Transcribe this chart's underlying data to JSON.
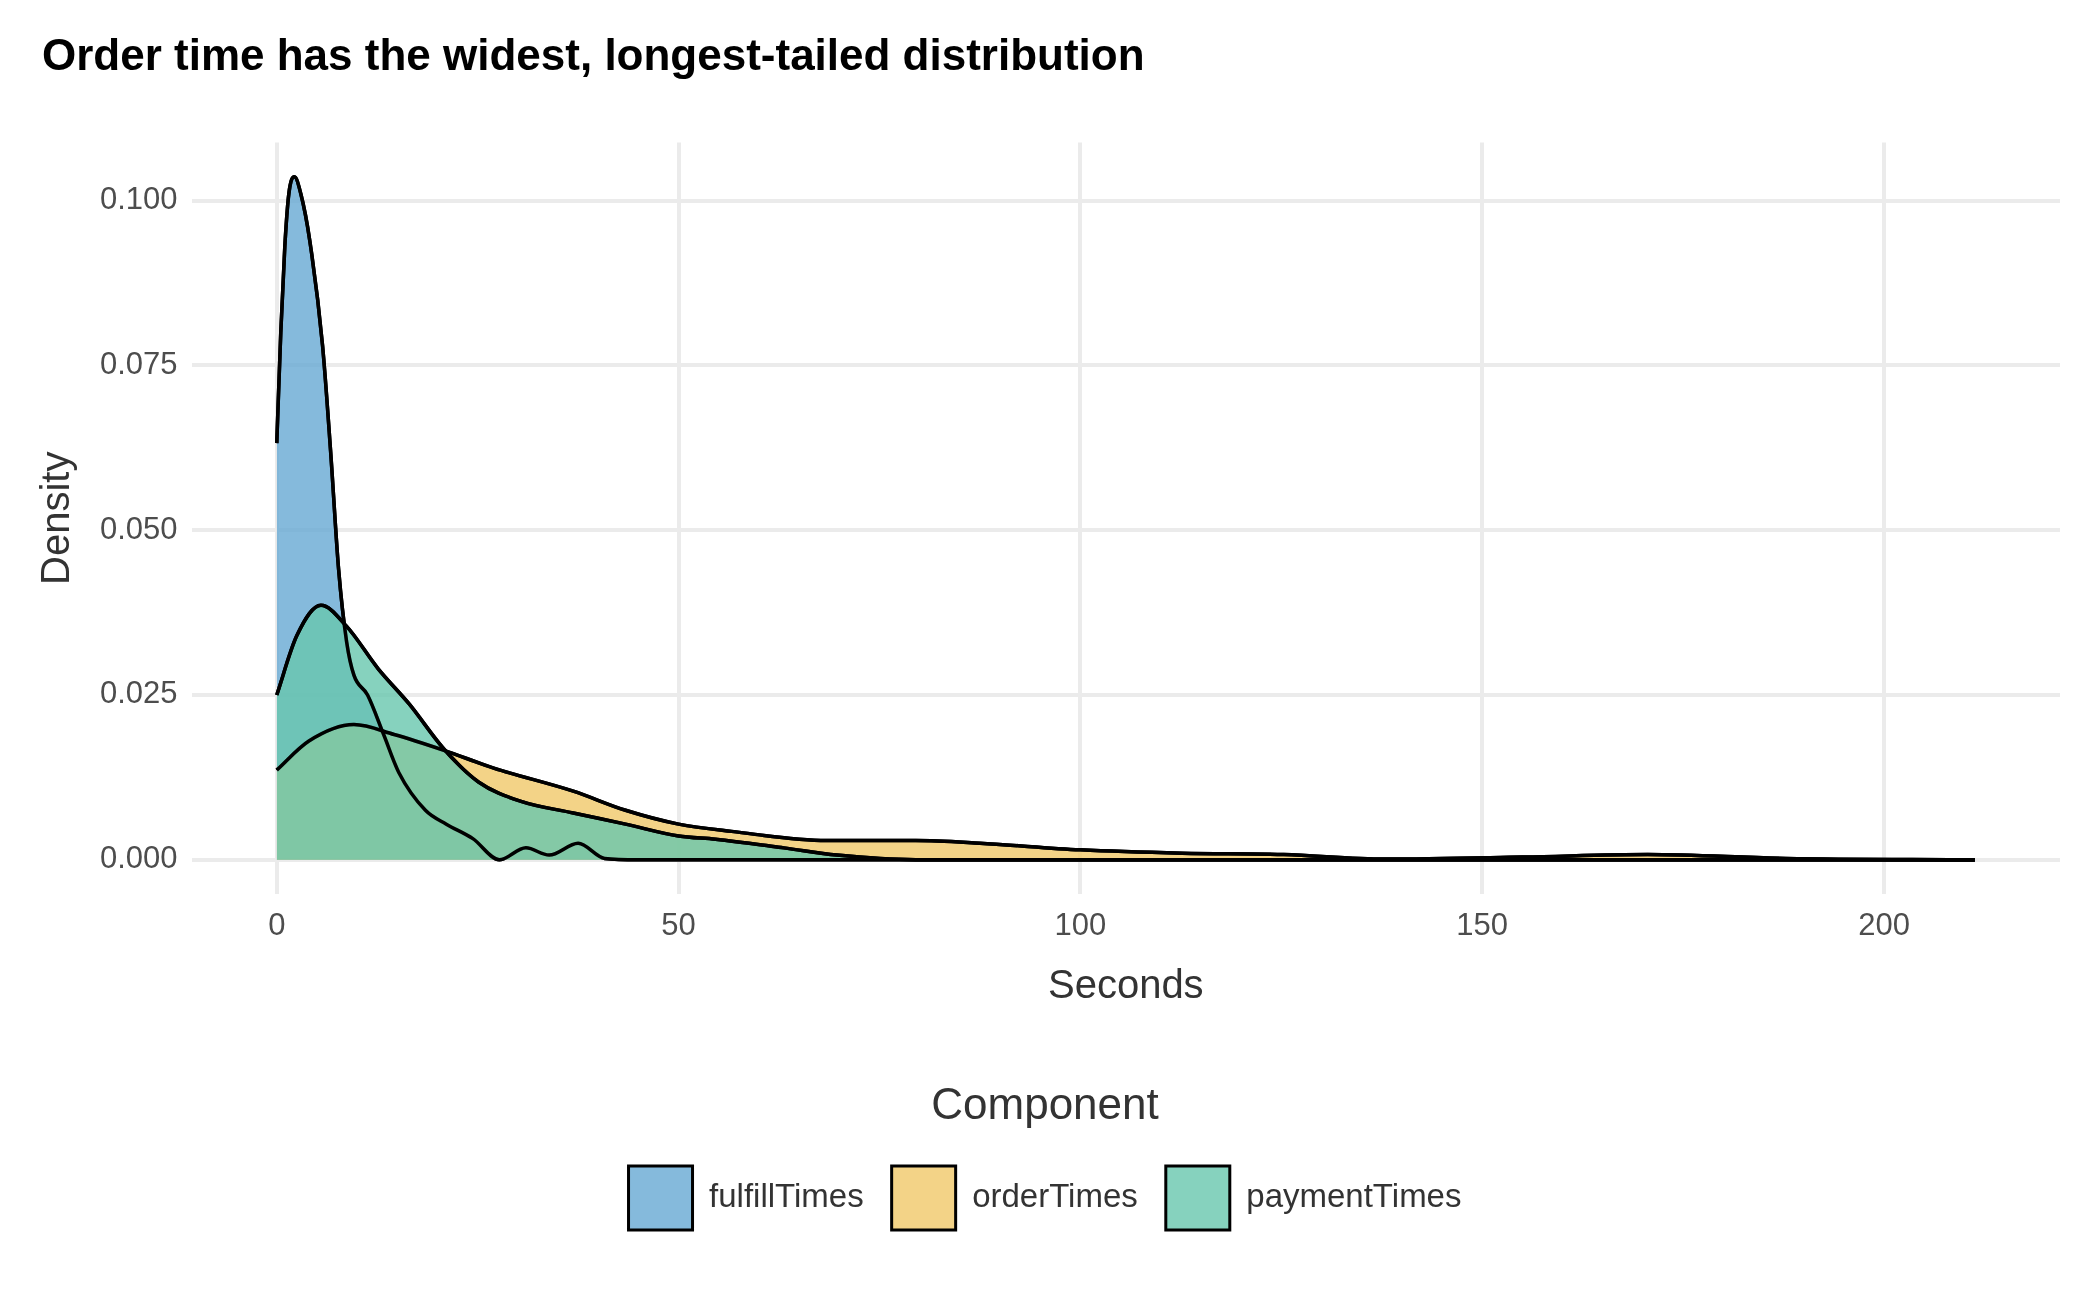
{
  "chart_data": {
    "type": "area",
    "title": "Order time has the widest, longest-tailed distribution",
    "xlabel": "Seconds",
    "ylabel": "Density",
    "legend_title": "Component",
    "legend": "bottom",
    "grid": true,
    "marker": "none",
    "xlim": [
      -10.6,
      221.9
    ],
    "xticks": [
      0,
      50,
      100,
      150,
      200
    ],
    "ylim": [
      -0.0052,
      0.1088
    ],
    "yticks": [
      {
        "value": 0,
        "label": "0.000"
      },
      {
        "value": 0.025,
        "label": "0.025"
      },
      {
        "value": 0.05,
        "label": "0.050"
      },
      {
        "value": 0.075,
        "label": "0.075"
      },
      {
        "value": 0.1,
        "label": "0.100"
      }
    ],
    "series": [
      {
        "name": "fulfillTimes",
        "color": "#66a9d3",
        "x": [
          0,
          0.5,
          1,
          1.5,
          2.2,
          3,
          4.1,
          5.7,
          6.7,
          7.7,
          8.7,
          9.6,
          11.3,
          13.3,
          15.2,
          18.5,
          21.1,
          24.4,
          27.7,
          31,
          33.9,
          37.5,
          40.8,
          45,
          60,
          100,
          150,
          211.3
        ],
        "values": [
          0.0632,
          0.08,
          0.093,
          0.101,
          0.1036,
          0.101,
          0.094,
          0.078,
          0.062,
          0.044,
          0.033,
          0.028,
          0.025,
          0.019,
          0.0132,
          0.0075,
          0.0054,
          0.0032,
          0,
          0.0018,
          0.0007,
          0.0025,
          0.0002,
          0,
          0,
          0,
          0,
          0
        ]
      },
      {
        "name": "orderTimes",
        "color": "#f0c869",
        "x": [
          0,
          4,
          9.6,
          14.6,
          20.8,
          27,
          36.9,
          43.4,
          50,
          56.6,
          68.4,
          74.7,
          79.5,
          87.5,
          100,
          112.7,
          125.3,
          137.9,
          155,
          170.6,
          187.8,
          211.3
        ],
        "values": [
          0.0136,
          0.018,
          0.0205,
          0.019,
          0.0166,
          0.0139,
          0.0104,
          0.0075,
          0.0054,
          0.0043,
          0.0029,
          0.0029,
          0.0029,
          0.0025,
          0.0015,
          0.001,
          0.0008,
          0.0001,
          0.0004,
          0.0008,
          0.0002,
          0
        ]
      },
      {
        "name": "paymentTimes",
        "color": "#68c7ae",
        "x": [
          0,
          2.5,
          5.5,
          8.7,
          12.6,
          16.5,
          20.8,
          25.1,
          30.3,
          36.9,
          43.4,
          50,
          54.6,
          63.1,
          69.7,
          79.5,
          100,
          150,
          211.3
        ],
        "values": [
          0.025,
          0.034,
          0.0386,
          0.0354,
          0.029,
          0.0236,
          0.0168,
          0.0118,
          0.0089,
          0.0071,
          0.0054,
          0.0036,
          0.0031,
          0.0018,
          0.0007,
          0,
          0,
          0,
          0
        ]
      }
    ]
  }
}
